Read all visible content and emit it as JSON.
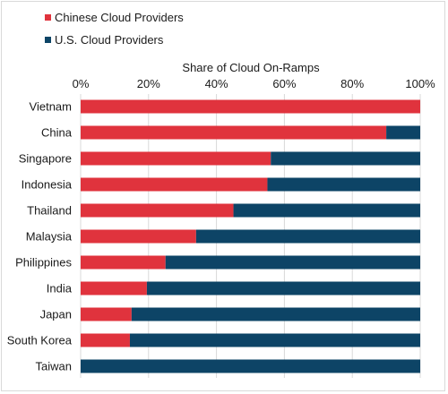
{
  "chart_data": {
    "type": "bar",
    "orientation": "horizontal",
    "stacked": true,
    "title": "",
    "xlabel": "Share of Cloud On-Ramps",
    "ylabel": "",
    "xlim": [
      0,
      100
    ],
    "x_ticks": [
      "0%",
      "20%",
      "40%",
      "60%",
      "80%",
      "100%"
    ],
    "x_axis_position": "top",
    "legend_position": "top-left",
    "grid": true,
    "categories": [
      "Vietnam",
      "China",
      "Singapore",
      "Indonesia",
      "Thailand",
      "Malaysia",
      "Philippines",
      "India",
      "Japan",
      "South Korea",
      "Taiwan"
    ],
    "series": [
      {
        "name": "Chinese Cloud Providers",
        "color": "#e0333d",
        "values": [
          100,
          90,
          56,
          55,
          45,
          34,
          25,
          19.5,
          15,
          14.5,
          0
        ]
      },
      {
        "name": "U.S. Cloud Providers",
        "color": "#0d4466",
        "values": [
          0,
          10,
          44,
          45,
          55,
          66,
          75,
          80.5,
          85,
          85.5,
          100
        ]
      }
    ]
  }
}
